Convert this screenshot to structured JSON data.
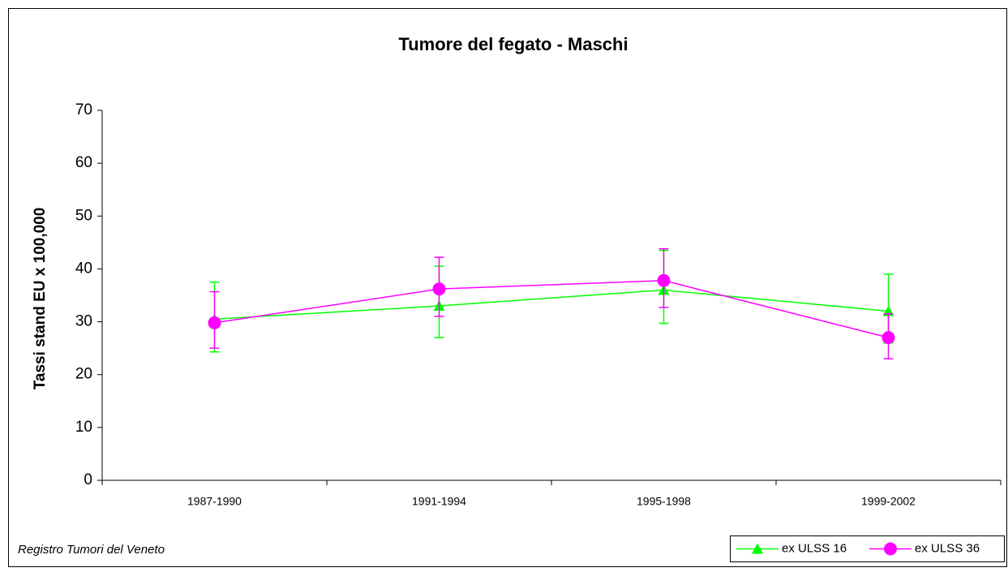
{
  "chart_data": {
    "type": "line",
    "title": "Tumore del fegato - Maschi",
    "y_label": "Tassi stand EU x 100,000",
    "source": "Registro Tumori del Veneto",
    "categories": [
      "1987-1990",
      "1991-1994",
      "1995-1998",
      "1999-2002"
    ],
    "series": [
      {
        "name": "ex ULSS 16",
        "color": "#00ff00",
        "marker": "triangle",
        "values": [
          30.5,
          33,
          36,
          32
        ],
        "ci_low": [
          24.3,
          27,
          29.7,
          26
        ],
        "ci_high": [
          37.5,
          40.5,
          43.5,
          39
        ]
      },
      {
        "name": "ex ULSS 36",
        "color": "#ff00ff",
        "marker": "circle",
        "values": [
          29.8,
          36.2,
          37.8,
          27
        ],
        "ci_low": [
          25,
          31,
          32.7,
          23
        ],
        "ci_high": [
          35.7,
          42.2,
          43.8,
          31.5
        ]
      }
    ],
    "ylim": [
      0,
      70
    ],
    "yticks": [
      0,
      10,
      20,
      30,
      40,
      50,
      60,
      70
    ],
    "grid": false,
    "legend": "bottom-right"
  }
}
